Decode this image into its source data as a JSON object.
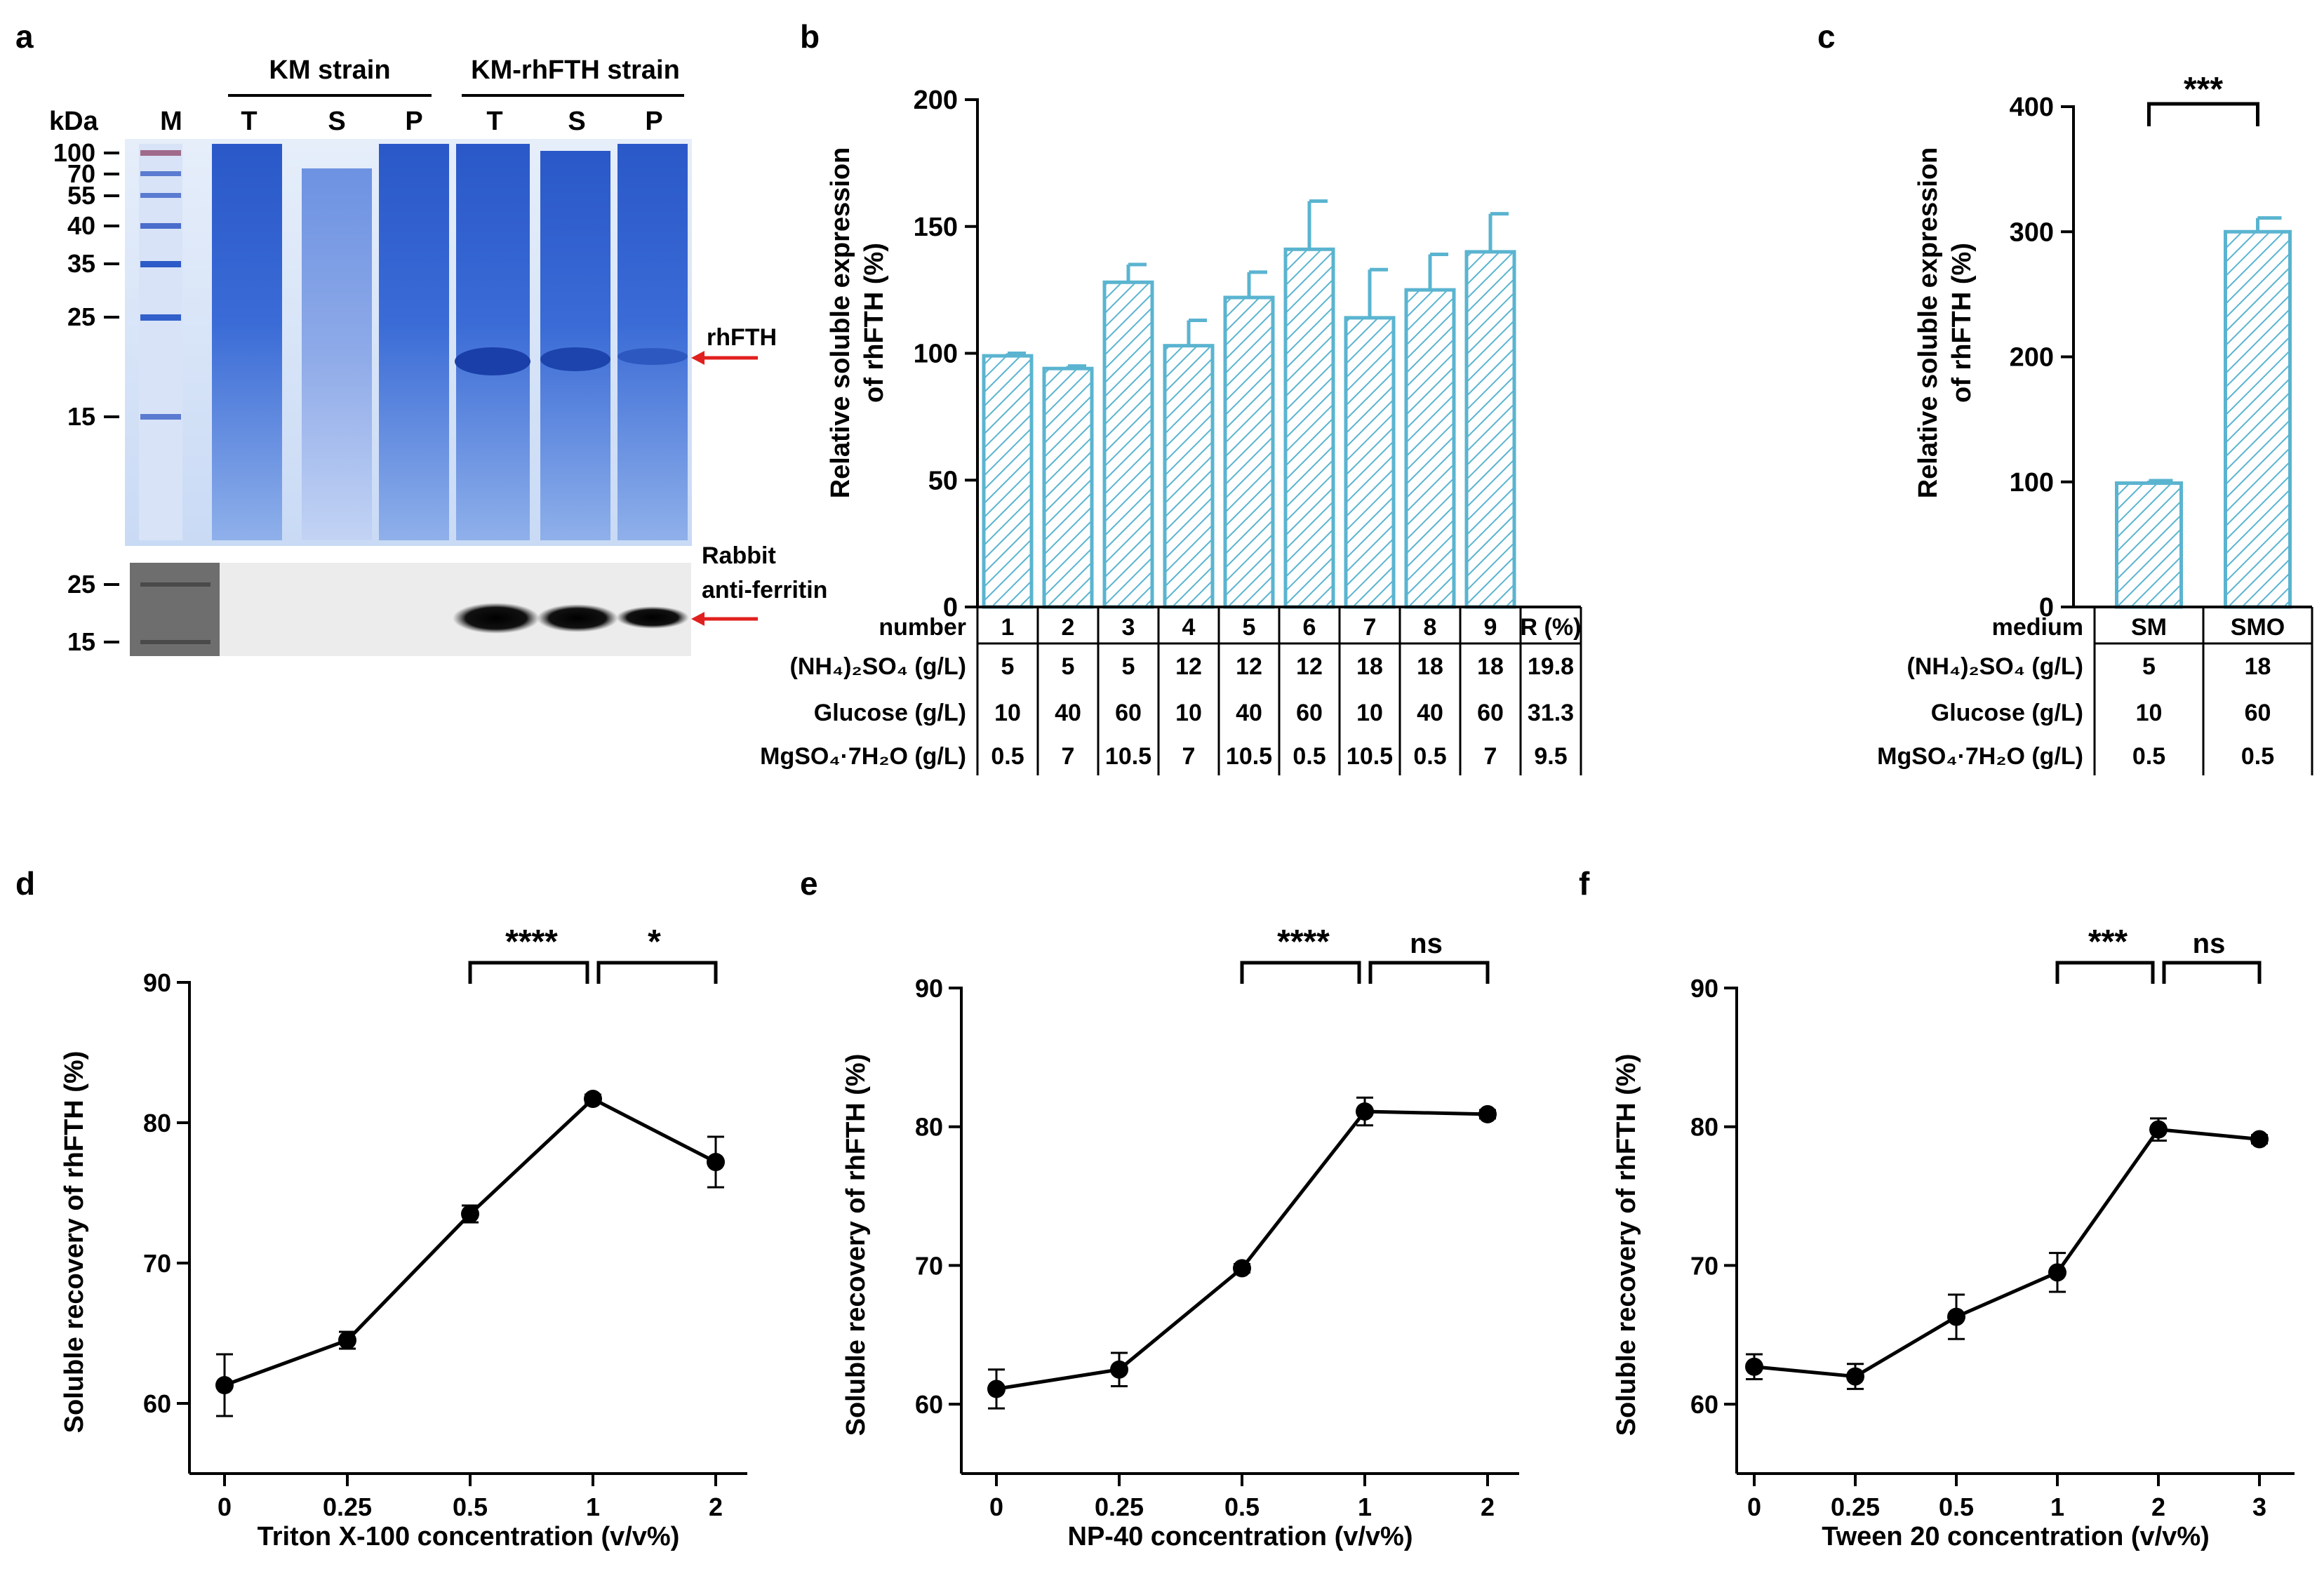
{
  "figure": {
    "panel_a": {
      "letter": "a",
      "group_left": "KM strain",
      "group_right": "KM-rhFTH strain",
      "unit_label": "kDa",
      "lanes": [
        "M",
        "T",
        "S",
        "P",
        "T",
        "S",
        "P"
      ],
      "gel_markers": [
        "100",
        "70",
        "55",
        "40",
        "35",
        "25",
        "15"
      ],
      "blot_markers": [
        "25",
        "15"
      ],
      "gel_arrow_label": "rhFTH",
      "blot_label_1": "Rabbit",
      "blot_label_2": "anti-ferritin",
      "colors": {
        "stain": "#2f5fcc",
        "arrow": "#e0201f"
      }
    },
    "panel_b": {
      "letter": "b",
      "ylabel_line1": "Relative soluble expression",
      "ylabel_line2": "of rhFTH (%)",
      "table": {
        "header_label": "number",
        "numbers": [
          "1",
          "2",
          "3",
          "4",
          "5",
          "6",
          "7",
          "8",
          "9",
          "R (%)"
        ],
        "rows": [
          {
            "label": "(NH₄)₂SO₄ (g/L)",
            "values": [
              "5",
              "5",
              "5",
              "12",
              "12",
              "12",
              "18",
              "18",
              "18",
              "19.8"
            ]
          },
          {
            "label": "Glucose (g/L)",
            "values": [
              "10",
              "40",
              "60",
              "10",
              "40",
              "60",
              "10",
              "40",
              "60",
              "31.3"
            ]
          },
          {
            "label": "MgSO₄·7H₂O (g/L)",
            "values": [
              "0.5",
              "7",
              "10.5",
              "7",
              "10.5",
              "0.5",
              "10.5",
              "0.5",
              "7",
              "9.5"
            ]
          }
        ]
      }
    },
    "panel_c": {
      "letter": "c",
      "ylabel_line1": "Relative soluble expression",
      "ylabel_line2": "of rhFTH (%)",
      "significance": "***",
      "table": {
        "header_label": "medium",
        "media": [
          "SM",
          "SMO"
        ],
        "rows": [
          {
            "label": "(NH₄)₂SO₄ (g/L)",
            "values": [
              "5",
              "18"
            ]
          },
          {
            "label": "Glucose (g/L)",
            "values": [
              "10",
              "60"
            ]
          },
          {
            "label": "MgSO₄·7H₂O (g/L)",
            "values": [
              "0.5",
              "0.5"
            ]
          }
        ]
      }
    }
  },
  "chart_data": [
    {
      "panel": "b",
      "type": "bar",
      "pattern": "hatched",
      "color": "#5ab4d0",
      "categories": [
        "1",
        "2",
        "3",
        "4",
        "5",
        "6",
        "7",
        "8",
        "9"
      ],
      "values": [
        99,
        94,
        128,
        103,
        122,
        141,
        114,
        125,
        140
      ],
      "errors": [
        1,
        1,
        7,
        10,
        10,
        19,
        19,
        14,
        15
      ],
      "ylim": [
        0,
        200
      ],
      "yticks": [
        0,
        50,
        100,
        150,
        200
      ],
      "ylabel": "Relative soluble expression of rhFTH (%)"
    },
    {
      "panel": "c",
      "type": "bar",
      "pattern": "hatched",
      "color": "#5ab4d0",
      "categories": [
        "SM",
        "SMO"
      ],
      "values": [
        99,
        300
      ],
      "errors": [
        2,
        11
      ],
      "ylim": [
        0,
        400
      ],
      "yticks": [
        0,
        100,
        200,
        300,
        400
      ],
      "ylabel": "Relative soluble expression of rhFTH (%)",
      "significance": [
        {
          "between": [
            "SM",
            "SMO"
          ],
          "label": "***"
        }
      ]
    },
    {
      "panel": "d",
      "letter": "d",
      "type": "line",
      "categories": [
        "0",
        "0.25",
        "0.5",
        "1",
        "2"
      ],
      "values": [
        61.3,
        64.5,
        73.5,
        81.7,
        77.2
      ],
      "errors": [
        2.2,
        0.6,
        0.6,
        0.3,
        1.8
      ],
      "ylim": [
        55,
        90
      ],
      "yticks": [
        60,
        70,
        80,
        90
      ],
      "xlabel": "Triton X-100 concentration (v/v%)",
      "ylabel": "Soluble recovery of rhFTH (%)",
      "significance": [
        {
          "between": [
            "0.5",
            "1"
          ],
          "label": "****"
        },
        {
          "between": [
            "1",
            "2"
          ],
          "label": "*"
        }
      ]
    },
    {
      "panel": "e",
      "letter": "e",
      "type": "line",
      "categories": [
        "0",
        "0.25",
        "0.5",
        "1",
        "2"
      ],
      "values": [
        61.1,
        62.5,
        69.8,
        81.1,
        80.9
      ],
      "errors": [
        1.4,
        1.2,
        0.3,
        1.0,
        0.3
      ],
      "ylim": [
        55,
        90
      ],
      "yticks": [
        60,
        70,
        80,
        90
      ],
      "xlabel": "NP-40 concentration (v/v%)",
      "ylabel": "Soluble recovery of rhFTH (%)",
      "significance": [
        {
          "between": [
            "0.5",
            "1"
          ],
          "label": "****"
        },
        {
          "between": [
            "1",
            "2"
          ],
          "label": "ns"
        }
      ]
    },
    {
      "panel": "f",
      "letter": "f",
      "type": "line",
      "categories": [
        "0",
        "0.25",
        "0.5",
        "1",
        "2",
        "3"
      ],
      "values": [
        62.7,
        62.0,
        66.3,
        69.5,
        79.8,
        79.1
      ],
      "errors": [
        0.9,
        0.9,
        1.6,
        1.4,
        0.8,
        0.3
      ],
      "ylim": [
        55,
        90
      ],
      "yticks": [
        60,
        70,
        80,
        90
      ],
      "xlabel": "Tween 20 concentration (v/v%)",
      "ylabel": "Soluble recovery of rhFTH (%)",
      "significance": [
        {
          "between": [
            "1",
            "2"
          ],
          "label": "***"
        },
        {
          "between": [
            "2",
            "3"
          ],
          "label": "ns"
        }
      ]
    }
  ]
}
